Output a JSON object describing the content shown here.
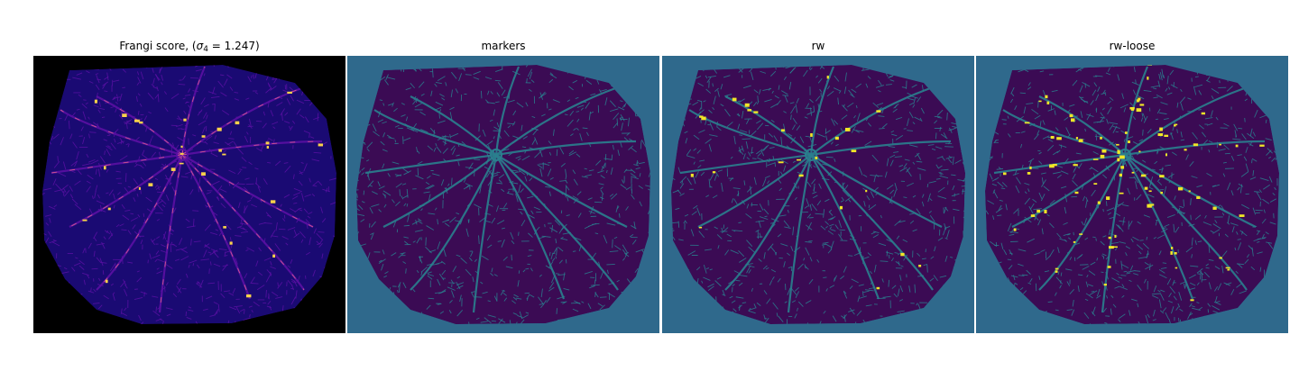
{
  "figure": {
    "panels": [
      {
        "id": "frangi",
        "title_main": "Frangi score, (",
        "title_sigma": "σ",
        "title_sub": "4",
        "title_tail": " = 1.247)",
        "colormap": "plasma"
      },
      {
        "id": "markers",
        "title": "markers",
        "colormap": "viridis"
      },
      {
        "id": "rw",
        "title": "rw",
        "colormap": "viridis"
      },
      {
        "id": "rw-loose",
        "title": "rw-loose",
        "colormap": "viridis"
      }
    ]
  },
  "colors": {
    "black_bg": "#000000",
    "frangi_tissue": "#1a0a73",
    "frangi_mid": "#5b10a3",
    "frangi_hot": "#e8658a",
    "frangi_peak": "#f9d24a",
    "viridis_bg": "#2f698c",
    "viridis_dark": "#3b0b54",
    "viridis_teal": "#2a7f8e",
    "viridis_yellow": "#f1e627"
  }
}
